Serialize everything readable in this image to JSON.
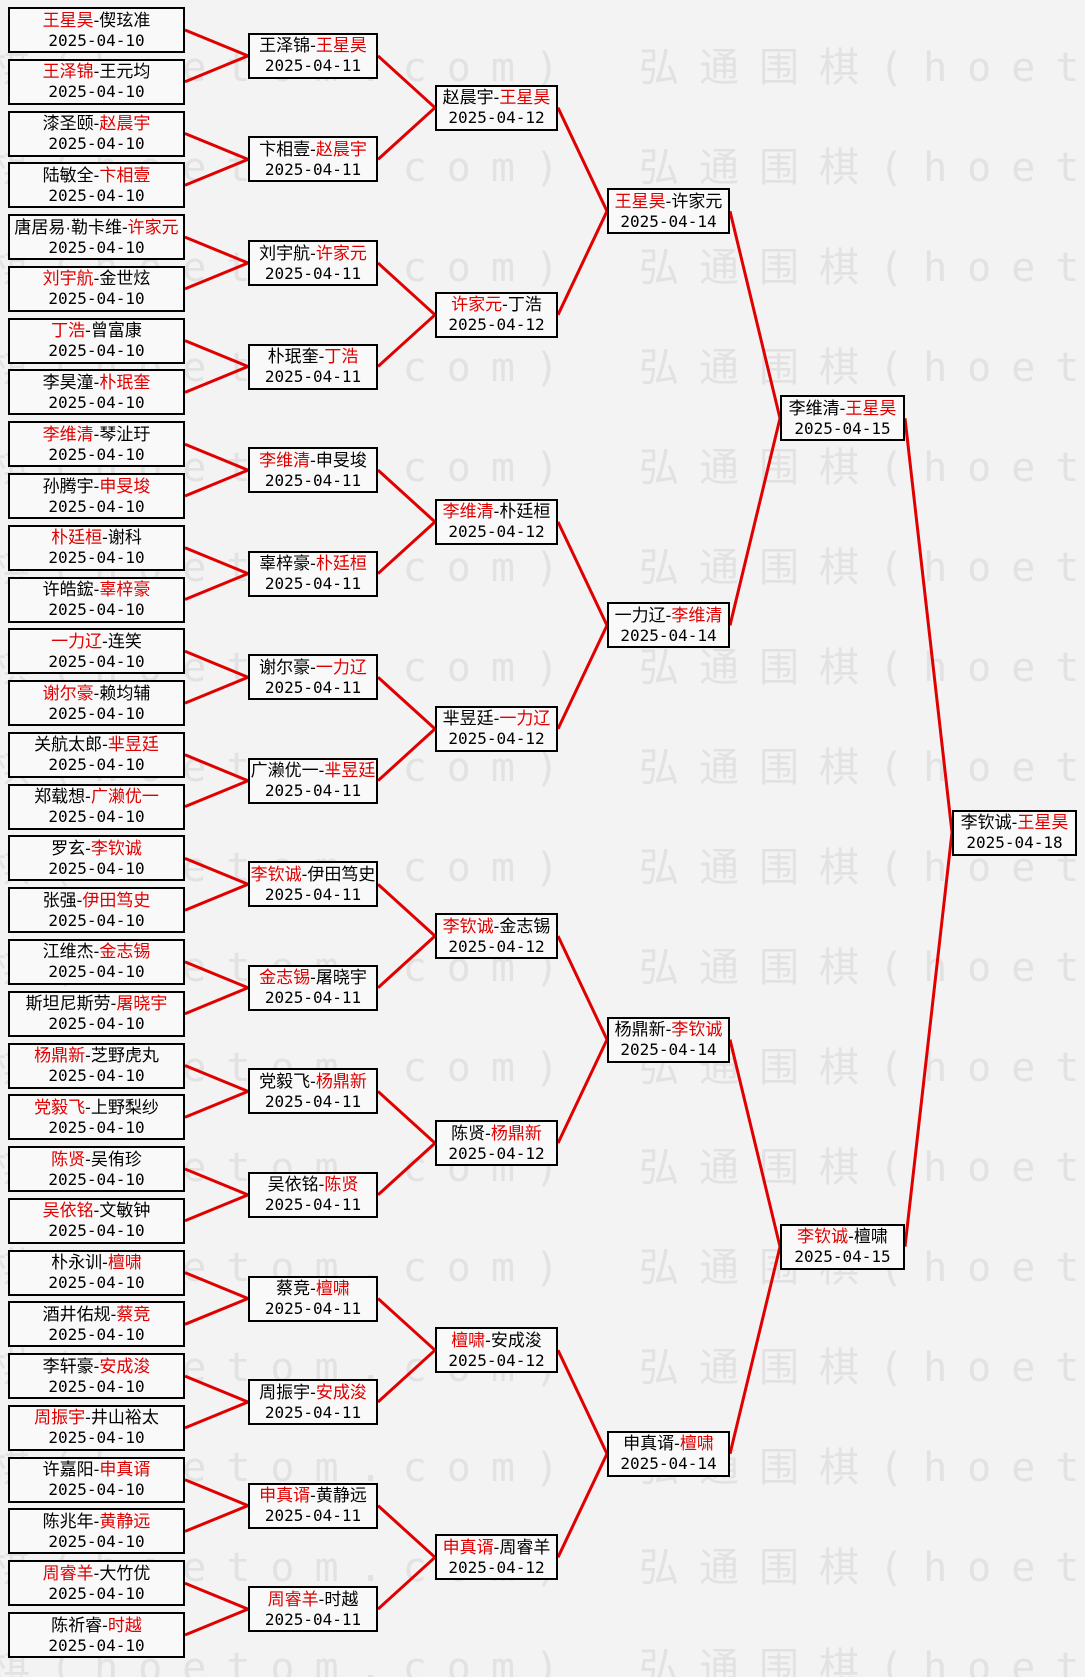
{
  "watermark": {
    "text": "弘通围棋(hoetom.com)"
  },
  "colors": {
    "winner_text": "#e00000",
    "line": "#e00000",
    "box_border": "#000000",
    "box_bg": "#f9f9f9",
    "page_bg": "#f3f3f3",
    "watermark_text": "#e2e2e2"
  },
  "bracket": {
    "rounds": [
      {
        "matches": [
          {
            "p1": "王星昊",
            "p2": "偰玹准",
            "w": 1,
            "d": "2025-04-10"
          },
          {
            "p1": "王泽锦",
            "p2": "王元均",
            "w": 1,
            "d": "2025-04-10"
          },
          {
            "p1": "漆圣颐",
            "p2": "赵晨宇",
            "w": 2,
            "d": "2025-04-10"
          },
          {
            "p1": "陆敏全",
            "p2": "卞相壹",
            "w": 2,
            "d": "2025-04-10"
          },
          {
            "p1": "唐居易·勒卡维",
            "p2": "许家元",
            "w": 2,
            "d": "2025-04-10"
          },
          {
            "p1": "刘宇航",
            "p2": "金世炫",
            "w": 1,
            "d": "2025-04-10"
          },
          {
            "p1": "丁浩",
            "p2": "曾富康",
            "w": 1,
            "d": "2025-04-10"
          },
          {
            "p1": "李昊潼",
            "p2": "朴珉奎",
            "w": 2,
            "d": "2025-04-10"
          },
          {
            "p1": "李维清",
            "p2": "琴沚玗",
            "w": 1,
            "d": "2025-04-10"
          },
          {
            "p1": "孙腾宇",
            "p2": "申旻埈",
            "w": 2,
            "d": "2025-04-10"
          },
          {
            "p1": "朴廷桓",
            "p2": "谢科",
            "w": 1,
            "d": "2025-04-10"
          },
          {
            "p1": "许皓鋐",
            "p2": "辜梓豪",
            "w": 2,
            "d": "2025-04-10"
          },
          {
            "p1": "一力辽",
            "p2": "连笑",
            "w": 1,
            "d": "2025-04-10"
          },
          {
            "p1": "谢尔豪",
            "p2": "赖均辅",
            "w": 1,
            "d": "2025-04-10"
          },
          {
            "p1": "关航太郎",
            "p2": "芈昱廷",
            "w": 2,
            "d": "2025-04-10"
          },
          {
            "p1": "郑载想",
            "p2": "广濑优一",
            "w": 2,
            "d": "2025-04-10"
          },
          {
            "p1": "罗玄",
            "p2": "李钦诚",
            "w": 2,
            "d": "2025-04-10"
          },
          {
            "p1": "张强",
            "p2": "伊田笃史",
            "w": 2,
            "d": "2025-04-10"
          },
          {
            "p1": "江维杰",
            "p2": "金志锡",
            "w": 2,
            "d": "2025-04-10"
          },
          {
            "p1": "斯坦尼斯劳",
            "p2": "屠晓宇",
            "w": 2,
            "d": "2025-04-10"
          },
          {
            "p1": "杨鼎新",
            "p2": "芝野虎丸",
            "w": 1,
            "d": "2025-04-10"
          },
          {
            "p1": "党毅飞",
            "p2": "上野梨纱",
            "w": 1,
            "d": "2025-04-10"
          },
          {
            "p1": "陈贤",
            "p2": "吴侑珍",
            "w": 1,
            "d": "2025-04-10"
          },
          {
            "p1": "吴依铭",
            "p2": "文敏钟",
            "w": 1,
            "d": "2025-04-10"
          },
          {
            "p1": "朴永训",
            "p2": "檀啸",
            "w": 2,
            "d": "2025-04-10"
          },
          {
            "p1": "酒井佑规",
            "p2": "蔡竞",
            "w": 2,
            "d": "2025-04-10"
          },
          {
            "p1": "李轩豪",
            "p2": "安成浚",
            "w": 2,
            "d": "2025-04-10"
          },
          {
            "p1": "周振宇",
            "p2": "井山裕太",
            "w": 1,
            "d": "2025-04-10"
          },
          {
            "p1": "许嘉阳",
            "p2": "申真谞",
            "w": 2,
            "d": "2025-04-10"
          },
          {
            "p1": "陈兆年",
            "p2": "黄静远",
            "w": 2,
            "d": "2025-04-10"
          },
          {
            "p1": "周睿羊",
            "p2": "大竹优",
            "w": 1,
            "d": "2025-04-10"
          },
          {
            "p1": "陈祈睿",
            "p2": "时越",
            "w": 2,
            "d": "2025-04-10"
          }
        ]
      },
      {
        "matches": [
          {
            "p1": "王泽锦",
            "p2": "王星昊",
            "w": 2,
            "d": "2025-04-11"
          },
          {
            "p1": "卞相壹",
            "p2": "赵晨宇",
            "w": 2,
            "d": "2025-04-11"
          },
          {
            "p1": "刘宇航",
            "p2": "许家元",
            "w": 2,
            "d": "2025-04-11"
          },
          {
            "p1": "朴珉奎",
            "p2": "丁浩",
            "w": 2,
            "d": "2025-04-11"
          },
          {
            "p1": "李维清",
            "p2": "申旻埈",
            "w": 1,
            "d": "2025-04-11"
          },
          {
            "p1": "辜梓豪",
            "p2": "朴廷桓",
            "w": 2,
            "d": "2025-04-11"
          },
          {
            "p1": "谢尔豪",
            "p2": "一力辽",
            "w": 2,
            "d": "2025-04-11"
          },
          {
            "p1": "广濑优一",
            "p2": "芈昱廷",
            "w": 2,
            "d": "2025-04-11"
          },
          {
            "p1": "李钦诚",
            "p2": "伊田笃史",
            "w": 1,
            "d": "2025-04-11"
          },
          {
            "p1": "金志锡",
            "p2": "屠晓宇",
            "w": 1,
            "d": "2025-04-11"
          },
          {
            "p1": "党毅飞",
            "p2": "杨鼎新",
            "w": 2,
            "d": "2025-04-11"
          },
          {
            "p1": "吴依铭",
            "p2": "陈贤",
            "w": 2,
            "d": "2025-04-11"
          },
          {
            "p1": "蔡竞",
            "p2": "檀啸",
            "w": 2,
            "d": "2025-04-11"
          },
          {
            "p1": "周振宇",
            "p2": "安成浚",
            "w": 2,
            "d": "2025-04-11"
          },
          {
            "p1": "申真谞",
            "p2": "黄静远",
            "w": 1,
            "d": "2025-04-11"
          },
          {
            "p1": "周睿羊",
            "p2": "时越",
            "w": 1,
            "d": "2025-04-11"
          }
        ]
      },
      {
        "matches": [
          {
            "p1": "赵晨宇",
            "p2": "王星昊",
            "w": 2,
            "d": "2025-04-12"
          },
          {
            "p1": "许家元",
            "p2": "丁浩",
            "w": 1,
            "d": "2025-04-12"
          },
          {
            "p1": "李维清",
            "p2": "朴廷桓",
            "w": 1,
            "d": "2025-04-12"
          },
          {
            "p1": "芈昱廷",
            "p2": "一力辽",
            "w": 2,
            "d": "2025-04-12"
          },
          {
            "p1": "李钦诚",
            "p2": "金志锡",
            "w": 1,
            "d": "2025-04-12"
          },
          {
            "p1": "陈贤",
            "p2": "杨鼎新",
            "w": 2,
            "d": "2025-04-12"
          },
          {
            "p1": "檀啸",
            "p2": "安成浚",
            "w": 1,
            "d": "2025-04-12"
          },
          {
            "p1": "申真谞",
            "p2": "周睿羊",
            "w": 1,
            "d": "2025-04-12"
          }
        ]
      },
      {
        "matches": [
          {
            "p1": "王星昊",
            "p2": "许家元",
            "w": 1,
            "d": "2025-04-14"
          },
          {
            "p1": "一力辽",
            "p2": "李维清",
            "w": 2,
            "d": "2025-04-14"
          },
          {
            "p1": "杨鼎新",
            "p2": "李钦诚",
            "w": 2,
            "d": "2025-04-14"
          },
          {
            "p1": "申真谞",
            "p2": "檀啸",
            "w": 2,
            "d": "2025-04-14"
          }
        ]
      },
      {
        "matches": [
          {
            "p1": "李维清",
            "p2": "王星昊",
            "w": 2,
            "d": "2025-04-15"
          },
          {
            "p1": "李钦诚",
            "p2": "檀啸",
            "w": 1,
            "d": "2025-04-15"
          }
        ]
      },
      {
        "matches": [
          {
            "p1": "李钦诚",
            "p2": "王星昊",
            "w": 2,
            "d": "2025-04-18"
          }
        ]
      }
    ]
  }
}
